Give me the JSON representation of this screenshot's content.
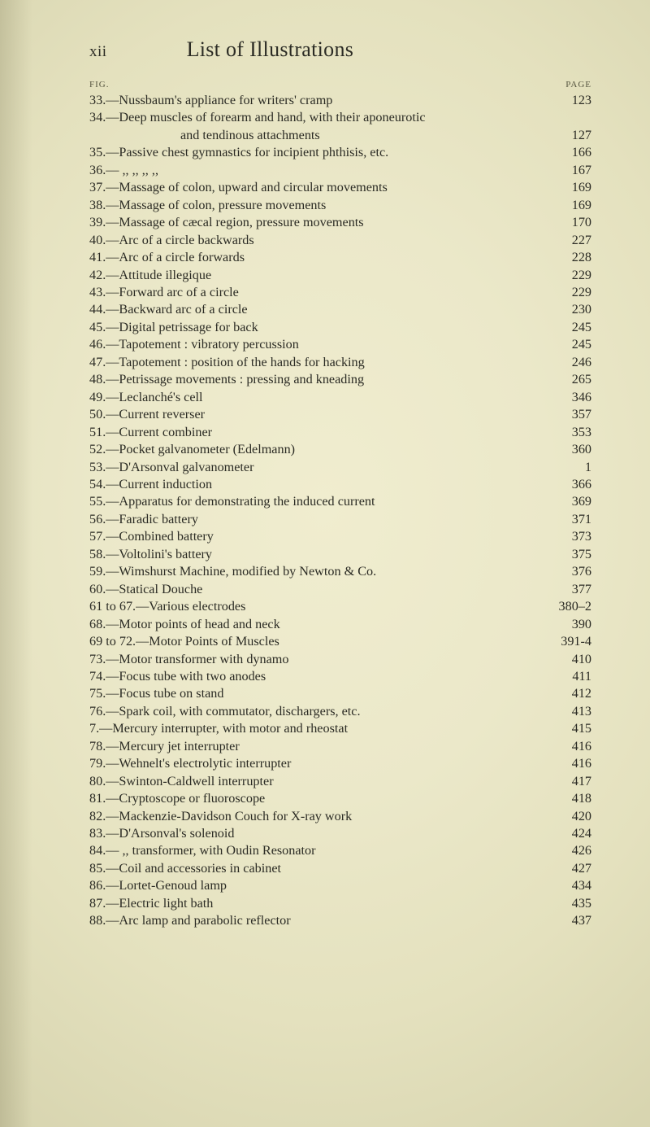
{
  "running_head": {
    "page_number_roman": "xii",
    "title": "List of Illustrations"
  },
  "column_heads": {
    "left": "FIG.",
    "right": "PAGE"
  },
  "typography": {
    "body_font_size_pt": 12,
    "title_font_size_pt": 19,
    "small_caps_font_size_pt": 8,
    "text_color": "#2b2b24",
    "background_color": "#eae8c8"
  },
  "entries": [
    {
      "label": "33.—Nussbaum's appliance for writers' cramp",
      "page": "123"
    },
    {
      "label": "34.—Deep muscles of forearm and hand, with their aponeurotic",
      "page": ""
    },
    {
      "label": "and tendinous attachments",
      "page": "127",
      "continuation": true
    },
    {
      "label": "35.—Passive chest gymnastics for incipient phthisis, etc.",
      "page": "166"
    },
    {
      "label": "36.—        ,,                ,,                ,,                ,,",
      "page": "167"
    },
    {
      "label": "37.—Massage of colon, upward and circular movements",
      "page": "169"
    },
    {
      "label": "38.—Massage of colon, pressure movements",
      "page": "169"
    },
    {
      "label": "39.—Massage of cæcal region, pressure movements",
      "page": "170"
    },
    {
      "label": "40.—Arc of a circle backwards",
      "page": "227"
    },
    {
      "label": "41.—Arc of a circle forwards",
      "page": "228"
    },
    {
      "label": "42.—Attitude illegique",
      "page": "229"
    },
    {
      "label": "43.—Forward arc of a circle",
      "page": "229"
    },
    {
      "label": "44.—Backward arc of a circle",
      "page": "230"
    },
    {
      "label": "45.—Digital petrissage for back",
      "page": "245"
    },
    {
      "label": "46.—Tapotement :  vibratory percussion",
      "page": "245"
    },
    {
      "label": "47.—Tapotement :  position of the hands for hacking",
      "page": "246"
    },
    {
      "label": "48.—Petrissage movements :  pressing and kneading",
      "page": "265"
    },
    {
      "label": "49.—Leclanché's cell",
      "page": "346"
    },
    {
      "label": "50.—Current reverser",
      "page": "357"
    },
    {
      "label": "51.—Current combiner",
      "page": "353"
    },
    {
      "label": "52.—Pocket galvanometer (Edelmann)",
      "page": "360"
    },
    {
      "label": "53.—D'Arsonval galvanometer",
      "page": "1"
    },
    {
      "label": "54.—Current induction",
      "page": "366"
    },
    {
      "label": "55.—Apparatus for demonstrating the induced current",
      "page": "369"
    },
    {
      "label": "56.—Faradic battery",
      "page": "371"
    },
    {
      "label": "57.—Combined battery",
      "page": "373"
    },
    {
      "label": "58.—Voltolini's battery",
      "page": "375"
    },
    {
      "label": "59.—Wimshurst Machine, modified by Newton & Co.",
      "page": "376"
    },
    {
      "label": "60.—Statical Douche",
      "page": "377"
    },
    {
      "label": "61 to 67.—Various electrodes",
      "page": "380–2"
    },
    {
      "label": "68.—Motor points of head and neck",
      "page": "390"
    },
    {
      "label": "69 to 72.—Motor Points of Muscles",
      "page": "391-4"
    },
    {
      "label": "73.—Motor transformer with dynamo",
      "page": "410"
    },
    {
      "label": "74.—Focus tube with two anodes",
      "page": "411"
    },
    {
      "label": "75.—Focus tube on stand",
      "page": "412"
    },
    {
      "label": "76.—Spark coil, with commutator, dischargers, etc.",
      "page": "413"
    },
    {
      "label": "  7.—Mercury interrupter, with motor and rheostat",
      "page": "415"
    },
    {
      "label": "78.—Mercury jet interrupter",
      "page": "416"
    },
    {
      "label": "79.—Wehnelt's electrolytic interrupter",
      "page": "416"
    },
    {
      "label": "80.—Swinton-Caldwell interrupter",
      "page": "417"
    },
    {
      "label": "81.—Cryptoscope or fluoroscope",
      "page": "418"
    },
    {
      "label": "82.—Mackenzie-Davidson Couch for X-ray work",
      "page": "420"
    },
    {
      "label": "83.—D'Arsonval's solenoid",
      "page": "424"
    },
    {
      "label": "84.—        ,,        transformer, with Oudin Resonator",
      "page": "426"
    },
    {
      "label": "85.—Coil and accessories in cabinet",
      "page": "427"
    },
    {
      "label": "86.—Lortet-Genoud lamp",
      "page": "434"
    },
    {
      "label": "87.—Electric light bath",
      "page": "435"
    },
    {
      "label": "88.—Arc lamp and parabolic reflector",
      "page": "437"
    }
  ]
}
